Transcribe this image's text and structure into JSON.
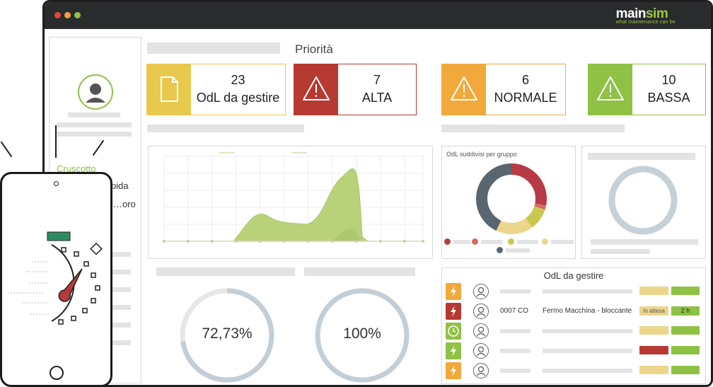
{
  "brand": {
    "name_a": "main",
    "name_b": "sim",
    "tagline": "what maintenance can be"
  },
  "sidebar": {
    "items": [
      {
        "label": "Cruscotto"
      },
      {
        "label": "…pida"
      },
      {
        "label": "…oro"
      }
    ]
  },
  "priority": {
    "title": "Priorità",
    "cards": [
      {
        "count": "23",
        "label": "OdL da gestire",
        "color": "#e9c84e",
        "icon": "document-icon"
      },
      {
        "count": "7",
        "label": "ALTA",
        "color": "#b63a32",
        "icon": "warning-icon"
      },
      {
        "count": "6",
        "label": "NORMALE",
        "color": "#f2a93b",
        "icon": "warning-icon"
      },
      {
        "count": "10",
        "label": "BASSA",
        "color": "#8fc145",
        "icon": "warning-icon"
      }
    ]
  },
  "donut": {
    "title": "OdL suddivisi per gruppo",
    "segment_fractions": [
      0.28,
      0.02,
      0.1,
      0.17,
      0.43
    ],
    "segment_colors": [
      "#b73a44",
      "#d66c63",
      "#c9c84e",
      "#ebd68c",
      "#596670"
    ]
  },
  "gauges": {
    "left": "72,73%",
    "right": "100%",
    "left_fraction": 0.7273,
    "right_fraction": 1.0
  },
  "workorders": {
    "title": "OdL da gestire",
    "rows": [
      {
        "icon": "lightning-icon",
        "color": "#f2a93b",
        "code": "",
        "desc": "",
        "status": "",
        "time": "",
        "status_color": "#ebd68c"
      },
      {
        "icon": "lightning-icon",
        "color": "#b63a32",
        "code": "0007 CO",
        "desc": "Fermo Macchina - bloccante",
        "status": "In attesa",
        "time": "2 h",
        "status_color": "#ebd68c"
      },
      {
        "icon": "clock-icon",
        "color": "#8fc145",
        "code": "",
        "desc": "",
        "status": "",
        "time": "",
        "status_color": "#ebd68c"
      },
      {
        "icon": "lightning-icon",
        "color": "#8fc145",
        "code": "",
        "desc": "",
        "status": "",
        "time": "",
        "status_color": "#b63a32"
      },
      {
        "icon": "lightning-icon",
        "color": "#f2a93b",
        "code": "",
        "desc": "",
        "status": "",
        "time": "",
        "status_color": "#ebd68c"
      }
    ]
  },
  "colors": {
    "accent_green": "#8fc145",
    "titlebar": "#2a2b2d",
    "chart_fill": "#b9d27a"
  }
}
